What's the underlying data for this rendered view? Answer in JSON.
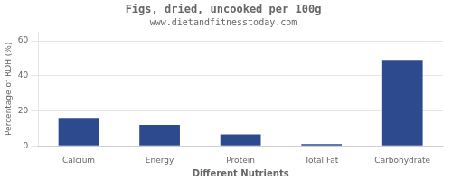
{
  "chart_data": {
    "type": "bar",
    "title": "Figs, dried, uncooked per 100g",
    "subtitle": "www.dietandfitnesstoday.com",
    "categories": [
      "Calcium",
      "Energy",
      "Protein",
      "Total Fat",
      "Carbohydrate"
    ],
    "values": [
      16,
      12,
      6.5,
      1,
      49
    ],
    "color": "#2e4a8e",
    "xlabel": "Different Nutrients",
    "ylabel": "Percentage of RDH (%)",
    "ylim": [
      0,
      65
    ],
    "yticks": [
      0,
      20,
      40,
      60
    ],
    "grid": true
  }
}
